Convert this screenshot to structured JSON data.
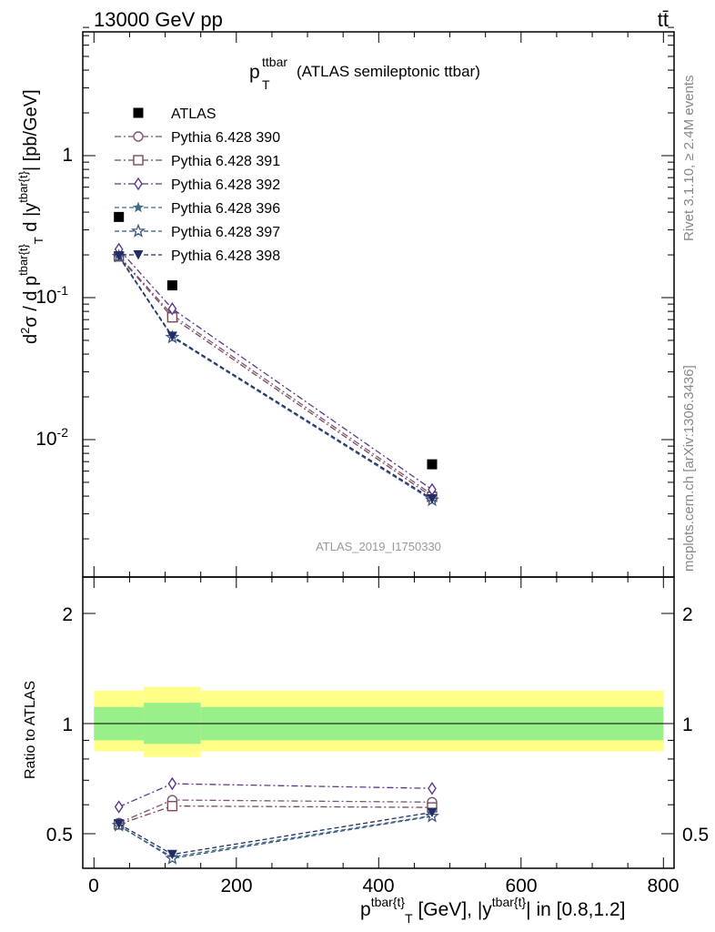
{
  "header": {
    "left": "13000 GeV pp",
    "right": "tt̄"
  },
  "plot_title": {
    "main": "p",
    "sup": "ttbar",
    "sub": "T",
    "rest": "(ATLAS semileptonic ttbar)"
  },
  "side_labels": {
    "rivet": "Rivet 3.1.10, ≥ 2.4M events",
    "mcplots": "mcplots.cern.ch [arXiv:1306.3436]"
  },
  "watermark": "ATLAS_2019_I1750330",
  "axes": {
    "ylabel_main": "d²σ / d p^{tbar{t}}_T d |y^{tbar{t}}| [pb/GeV]",
    "ylabel_ratio": "Ratio to ATLAS",
    "xlabel": "p^{tbar{t}}_T [GeV], |y^{tbar{t}}| in [0.8,1.2]",
    "x_ticks": [
      "0",
      "200",
      "400",
      "600",
      "800"
    ],
    "main_y_ticks": [
      "1",
      "10^-1",
      "10^-2"
    ],
    "ratio_y_ticks": [
      "0.5",
      "1",
      "2"
    ]
  },
  "chart_data": [
    {
      "type": "scatter",
      "panel": "main",
      "xlim": [
        -20,
        815
      ],
      "ylim": [
        0.0011,
        8.3
      ],
      "log_y": true,
      "legend_position": "top-left",
      "x": [
        35,
        110,
        475
      ],
      "series": [
        {
          "name": "ATLAS",
          "marker": "filled-square",
          "color": "#000000",
          "values": [
            0.37,
            0.122,
            0.0067
          ]
        },
        {
          "name": "Pythia 6.428 390",
          "marker": "open-circle",
          "color": "#7a5574",
          "dash": "dashdot",
          "values": [
            0.197,
            0.0755,
            0.0041
          ]
        },
        {
          "name": "Pythia 6.428 391",
          "marker": "open-square",
          "color": "#7a4a5a",
          "dash": "dashdot",
          "values": [
            0.195,
            0.0726,
            0.00395
          ]
        },
        {
          "name": "Pythia 6.428 392",
          "marker": "open-diamond",
          "color": "#5a3a8a",
          "dash": "dashdot",
          "values": [
            0.219,
            0.0835,
            0.00445
          ]
        },
        {
          "name": "Pythia 6.428 396",
          "marker": "filled-star",
          "color": "#3c6e88",
          "dash": "dashed",
          "values": [
            0.194,
            0.0527,
            0.00375
          ]
        },
        {
          "name": "Pythia 6.428 397",
          "marker": "open-star",
          "color": "#3a5880",
          "dash": "dashed",
          "values": [
            0.195,
            0.0525,
            0.00375
          ]
        },
        {
          "name": "Pythia 6.428 398",
          "marker": "filled-triangle-down",
          "color": "#232c66",
          "dash": "dashed",
          "values": [
            0.197,
            0.0535,
            0.00383
          ]
        }
      ]
    },
    {
      "type": "line",
      "panel": "ratio",
      "xlim": [
        -20,
        815
      ],
      "ylim": [
        0.42,
        2.45
      ],
      "log_y": true,
      "reference_line": 1,
      "bands": [
        {
          "x_from": 0,
          "x_to": 70,
          "outer": [
            0.84,
            1.23
          ],
          "inner": [
            0.9,
            1.11
          ]
        },
        {
          "x_from": 70,
          "x_to": 150,
          "outer": [
            0.81,
            1.26
          ],
          "inner": [
            0.88,
            1.14
          ]
        },
        {
          "x_from": 150,
          "x_to": 800,
          "outer": [
            0.84,
            1.23
          ],
          "inner": [
            0.9,
            1.11
          ]
        }
      ],
      "x": [
        35,
        110,
        475
      ],
      "series": [
        {
          "name": "Pythia 6.428 390",
          "values": [
            0.535,
            0.618,
            0.61
          ]
        },
        {
          "name": "Pythia 6.428 391",
          "values": [
            0.53,
            0.595,
            0.59
          ]
        },
        {
          "name": "Pythia 6.428 392",
          "values": [
            0.592,
            0.685,
            0.665
          ]
        },
        {
          "name": "Pythia 6.428 396",
          "values": [
            0.525,
            0.432,
            0.56
          ]
        },
        {
          "name": "Pythia 6.428 397",
          "values": [
            0.527,
            0.428,
            0.558
          ]
        },
        {
          "name": "Pythia 6.428 398",
          "values": [
            0.532,
            0.439,
            0.572
          ]
        }
      ]
    }
  ]
}
